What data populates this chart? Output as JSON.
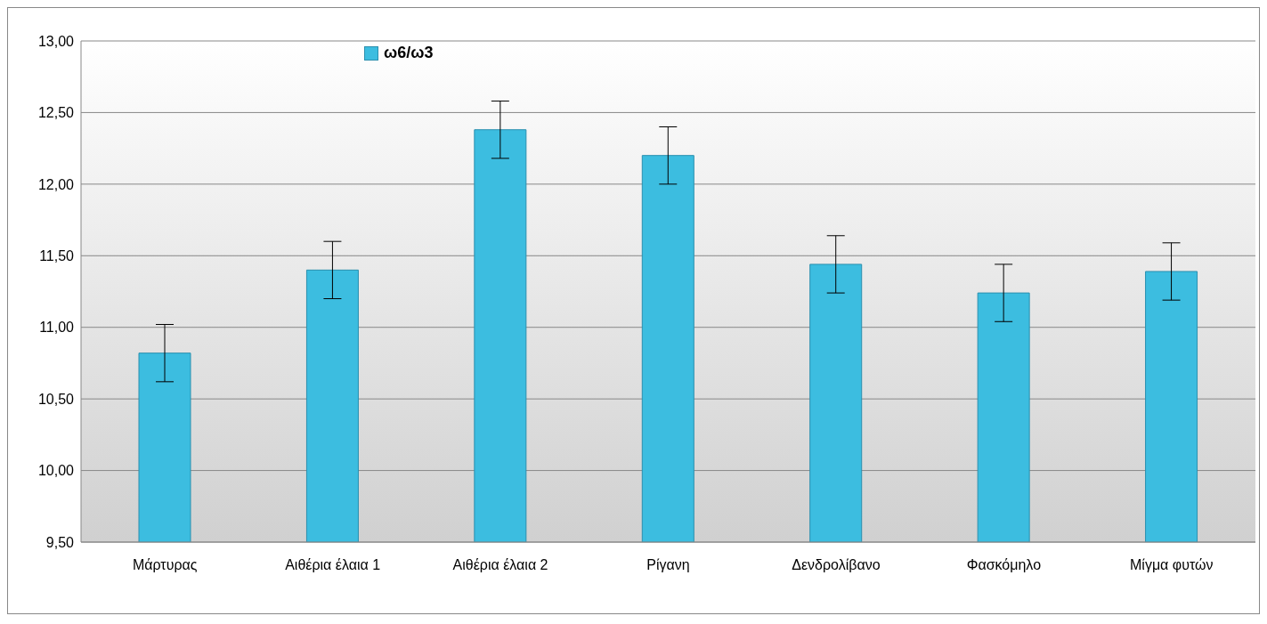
{
  "chart_data": {
    "type": "bar",
    "categories": [
      "Μάρτυρας",
      "Αιθέρια έλαια 1",
      "Αιθέρια έλαια 2",
      "Ρίγανη",
      "Δενδρολίβανο",
      "Φασκόμηλο",
      "Μίγμα φυτών"
    ],
    "series": [
      {
        "name": "ω6/ω3",
        "color": "#3cbde0",
        "values": [
          10.82,
          11.4,
          12.38,
          12.2,
          11.44,
          11.24,
          11.39
        ],
        "errors": [
          0.2,
          0.2,
          0.2,
          0.2,
          0.2,
          0.2,
          0.2
        ]
      }
    ],
    "ylim": [
      9.5,
      13
    ],
    "yticks": [
      {
        "value": 9.5,
        "label": "9,50"
      },
      {
        "value": 10,
        "label": "10,00"
      },
      {
        "value": 10.5,
        "label": "10,50"
      },
      {
        "value": 11,
        "label": "11,00"
      },
      {
        "value": 11.5,
        "label": "11,50"
      },
      {
        "value": 12,
        "label": "12,00"
      },
      {
        "value": 12.5,
        "label": "12,50"
      },
      {
        "value": 13,
        "label": "13,00"
      }
    ],
    "grid": "y",
    "legend": "top left"
  }
}
